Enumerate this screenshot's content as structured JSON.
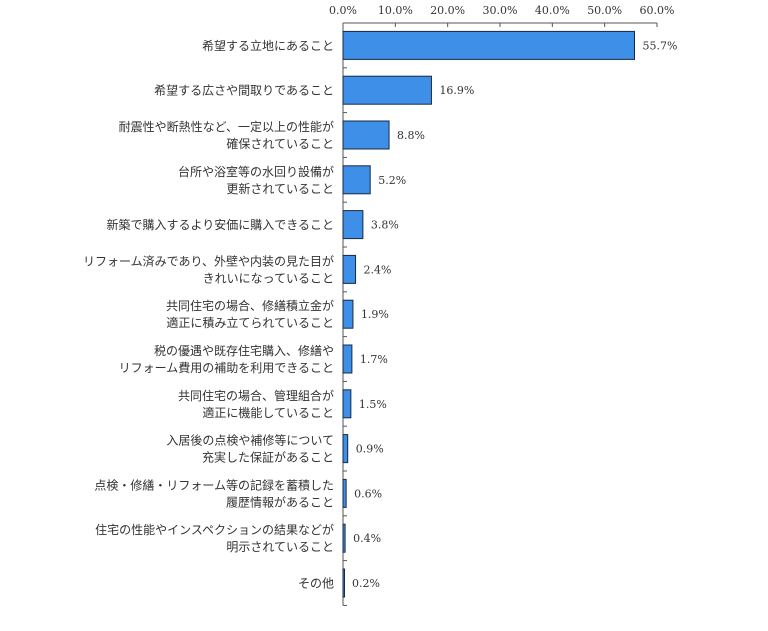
{
  "chart_data": {
    "type": "bar",
    "orientation": "horizontal",
    "title": "",
    "xlabel": "",
    "ylabel": "",
    "xlim": [
      0,
      60
    ],
    "x_ticks": [
      "0.0%",
      "10.0%",
      "20.0%",
      "30.0%",
      "40.0%",
      "50.0%",
      "60.0%"
    ],
    "x_tick_values": [
      0,
      10,
      20,
      30,
      40,
      50,
      60
    ],
    "axis_position": "top",
    "grid": false,
    "bar_color": "#3d8fe8",
    "categories": [
      [
        "希望する立地にあること"
      ],
      [
        "希望する広さや間取りであること"
      ],
      [
        "耐震性や断熱性など、一定以上の性能が",
        "確保されていること"
      ],
      [
        "台所や浴室等の水回り設備が",
        "更新されていること"
      ],
      [
        "新築で購入するより安価に購入できること"
      ],
      [
        "リフォーム済みであり、外壁や内装の見た目が",
        "きれいになっていること"
      ],
      [
        "共同住宅の場合、修繕積立金が",
        "適正に積み立てられていること"
      ],
      [
        "税の優遇や既存住宅購入、修繕や",
        "リフォーム費用の補助を利用できること"
      ],
      [
        "共同住宅の場合、管理組合が",
        "適正に機能していること"
      ],
      [
        "入居後の点検や補修等について",
        "充実した保証があること"
      ],
      [
        "点検・修繕・リフォーム等の記録を蓄積した",
        "履歴情報があること"
      ],
      [
        "住宅の性能やインスペクションの結果などが",
        "明示されていること"
      ],
      [
        "その他"
      ]
    ],
    "values": [
      55.7,
      16.9,
      8.8,
      5.2,
      3.8,
      2.4,
      1.9,
      1.7,
      1.5,
      0.9,
      0.6,
      0.4,
      0.2
    ],
    "value_labels": [
      "55.7%",
      "16.9%",
      "8.8%",
      "5.2%",
      "3.8%",
      "2.4%",
      "1.9%",
      "1.7%",
      "1.5%",
      "0.9%",
      "0.6%",
      "0.4%",
      "0.2%"
    ]
  }
}
